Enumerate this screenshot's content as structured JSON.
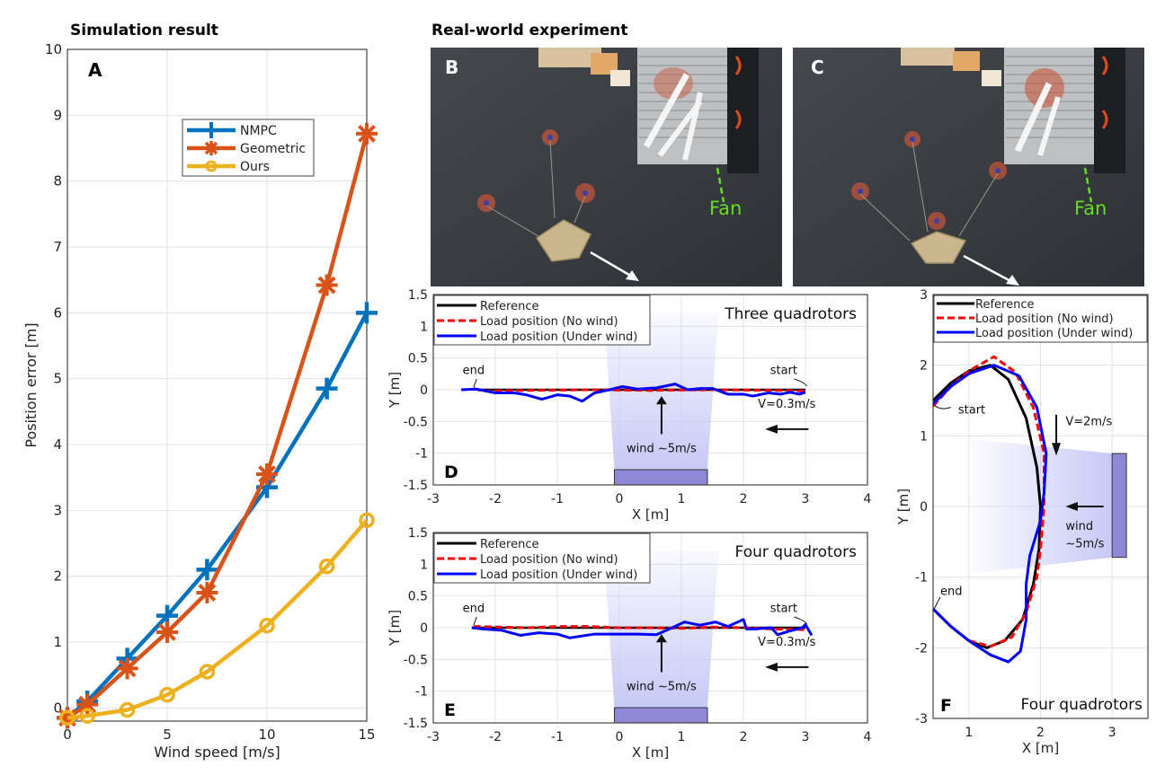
{
  "titles": {
    "simulation": "Simulation result",
    "real_world": "Real-world experiment"
  },
  "photos": [
    {
      "panel": "B",
      "fan_label": "Fan",
      "description": "three quadrotors carrying a suspended box load near a fan"
    },
    {
      "panel": "C",
      "fan_label": "Fan",
      "description": "four quadrotors carrying a suspended box load near a fan"
    }
  ],
  "colors": {
    "nmpc": "#0072BD",
    "geometric": "#D95319",
    "ours": "#EDB120",
    "reference": "#000000",
    "no_wind": "#FF0000",
    "under_wind": "#0000FF",
    "fan_label": "#66DD22",
    "fan_box": "#8F88D6",
    "wind_zone": "#C7C9F6"
  },
  "chart_data": [
    {
      "panel": "A",
      "type": "line",
      "title": "",
      "xlabel": "Wind speed [m/s]",
      "ylabel": "Position error [m]",
      "xlim": [
        0,
        15
      ],
      "ylim": [
        -0.2,
        10
      ],
      "xticks": [
        0,
        5,
        10,
        15
      ],
      "yticks": [
        0,
        1,
        2,
        3,
        4,
        5,
        6,
        7,
        8,
        9,
        10
      ],
      "grid": true,
      "legend_position": "upper-center",
      "series": [
        {
          "name": "NMPC",
          "marker": "plus",
          "x": [
            0,
            1,
            3,
            5,
            7,
            10,
            13,
            15
          ],
          "y": [
            -0.15,
            0.1,
            0.75,
            1.4,
            2.1,
            3.35,
            4.85,
            6.0
          ]
        },
        {
          "name": "Geometric",
          "marker": "asterisk",
          "x": [
            0,
            1,
            3,
            5,
            7,
            10,
            13,
            15
          ],
          "y": [
            -0.15,
            0.05,
            0.6,
            1.15,
            1.75,
            3.55,
            6.42,
            8.72
          ]
        },
        {
          "name": "Ours",
          "marker": "circle",
          "x": [
            0,
            1,
            3,
            5,
            7,
            10,
            13,
            15
          ],
          "y": [
            -0.15,
            -0.12,
            -0.03,
            0.2,
            0.55,
            1.25,
            2.15,
            2.85
          ]
        }
      ]
    },
    {
      "panel": "D",
      "type": "line",
      "subtitle": "Three quadrotors",
      "xlabel": "X [m]",
      "ylabel": "Y [m]",
      "xlim": [
        -3,
        4
      ],
      "ylim": [
        -1.5,
        1.5
      ],
      "xticks": [
        -3,
        -2,
        -1,
        0,
        1,
        2,
        3,
        4
      ],
      "yticks": [
        -1.5,
        -1,
        -0.5,
        0,
        0.5,
        1,
        1.5
      ],
      "grid": true,
      "legend_position": "top-left",
      "annotations": {
        "end": "end",
        "start": "start",
        "velocity": "V=0.3m/s",
        "wind": "wind ~5m/s"
      },
      "fan": {
        "x": [
          -0.08,
          1.42
        ],
        "y": [
          -1.5,
          -1.26
        ]
      },
      "series": [
        {
          "name": "Reference",
          "style": "solid",
          "x": [
            -2.3,
            3.0
          ],
          "y": [
            0,
            0
          ]
        },
        {
          "name": "Load position (No wind)",
          "style": "dashed",
          "x": [
            -2.35,
            -2.2,
            -1.5,
            -0.5,
            0.5,
            1.5,
            2.5,
            3.0
          ],
          "y": [
            0.02,
            -0.02,
            -0.01,
            0.0,
            -0.01,
            0.0,
            -0.01,
            -0.02
          ]
        },
        {
          "name": "Load position (Under wind)",
          "style": "solid",
          "x": [
            -2.55,
            -2.3,
            -2.0,
            -1.7,
            -1.5,
            -1.25,
            -1.0,
            -0.8,
            -0.6,
            -0.4,
            -0.2,
            0.05,
            0.3,
            0.6,
            0.9,
            1.1,
            1.3,
            1.5,
            1.75,
            2.0,
            2.15,
            2.4,
            2.6,
            2.75,
            2.9,
            3.0
          ],
          "y": [
            0.0,
            0.01,
            -0.05,
            -0.05,
            -0.08,
            -0.15,
            -0.08,
            -0.1,
            -0.18,
            -0.05,
            -0.01,
            0.05,
            0.01,
            0.03,
            0.09,
            0.0,
            0.02,
            0.02,
            -0.07,
            -0.07,
            -0.1,
            -0.05,
            -0.07,
            -0.04,
            -0.07,
            -0.04
          ]
        }
      ]
    },
    {
      "panel": "E",
      "type": "line",
      "subtitle": "Four quadrotors",
      "xlabel": "X [m]",
      "ylabel": "Y [m]",
      "xlim": [
        -3,
        4
      ],
      "ylim": [
        -1.5,
        1.5
      ],
      "xticks": [
        -3,
        -2,
        -1,
        0,
        1,
        2,
        3,
        4
      ],
      "yticks": [
        -1.5,
        -1,
        -0.5,
        0,
        0.5,
        1,
        1.5
      ],
      "grid": true,
      "legend_position": "top-left",
      "annotations": {
        "end": "end",
        "start": "start",
        "velocity": "V=0.3m/s",
        "wind": "wind ~5m/s"
      },
      "fan": {
        "x": [
          -0.08,
          1.42
        ],
        "y": [
          -1.5,
          -1.26
        ]
      },
      "series": [
        {
          "name": "Reference",
          "style": "solid",
          "x": [
            -2.35,
            3.0
          ],
          "y": [
            0,
            0
          ]
        },
        {
          "name": "Load position (No wind)",
          "style": "dashed",
          "x": [
            -2.35,
            -1.5,
            -1.0,
            -0.5,
            0.0,
            0.5,
            1.0,
            1.5,
            2.0,
            2.5,
            3.0
          ],
          "y": [
            0.02,
            0.0,
            0.02,
            0.02,
            0.0,
            0.0,
            -0.01,
            0.01,
            0.0,
            -0.02,
            -0.03
          ]
        },
        {
          "name": "Load position (Under wind)",
          "style": "solid",
          "x": [
            -2.38,
            -2.2,
            -1.9,
            -1.6,
            -1.3,
            -1.0,
            -0.8,
            -0.4,
            0.0,
            0.3,
            0.6,
            0.85,
            1.05,
            1.3,
            1.55,
            1.75,
            2.0,
            2.05,
            2.2,
            2.45,
            2.55,
            2.75,
            2.95,
            3.0,
            3.1
          ],
          "y": [
            0.0,
            -0.02,
            -0.04,
            -0.12,
            -0.08,
            -0.1,
            -0.16,
            -0.1,
            -0.1,
            -0.1,
            -0.11,
            0.0,
            0.09,
            0.04,
            0.09,
            0.02,
            0.13,
            -0.02,
            -0.02,
            0.0,
            -0.11,
            -0.05,
            0.0,
            0.05,
            -0.12
          ]
        }
      ]
    },
    {
      "panel": "F",
      "type": "line",
      "subtitle": "Four quadrotors",
      "xlabel": "X [m]",
      "ylabel": "Y [m]",
      "xlim": [
        0.5,
        3.5
      ],
      "ylim": [
        -3,
        3
      ],
      "xticks": [
        1,
        2,
        3
      ],
      "yticks": [
        -3,
        -2,
        -1,
        0,
        1,
        2,
        3
      ],
      "grid": true,
      "legend_position": "top",
      "annotations": {
        "end": "end",
        "start": "start",
        "velocity": "V=2m/s",
        "wind": "wind",
        "wind_speed": "~5m/s"
      },
      "fan": {
        "x": [
          3.0,
          3.2
        ],
        "y": [
          -0.72,
          0.75
        ]
      },
      "series": [
        {
          "name": "Reference",
          "style": "solid",
          "x": [
            0.5,
            0.75,
            1.0,
            1.3,
            1.55,
            1.8,
            1.95,
            2.0,
            1.98,
            1.9,
            1.75,
            1.5,
            1.25,
            1.0,
            0.75,
            0.5
          ],
          "y": [
            1.5,
            1.75,
            1.92,
            2.0,
            1.8,
            1.25,
            0.55,
            0.0,
            -0.6,
            -1.1,
            -1.6,
            -1.9,
            -2.0,
            -1.9,
            -1.7,
            -1.45
          ]
        },
        {
          "name": "Load position (No wind)",
          "style": "dashed",
          "x": [
            0.5,
            0.75,
            1.0,
            1.35,
            1.65,
            1.9,
            2.05,
            2.05,
            2.0,
            1.95,
            1.8,
            1.6,
            1.3,
            1.0,
            0.75,
            0.5
          ],
          "y": [
            1.42,
            1.7,
            1.92,
            2.12,
            1.9,
            1.4,
            0.75,
            0.0,
            -0.6,
            -1.0,
            -1.5,
            -1.85,
            -1.98,
            -1.9,
            -1.7,
            -1.45
          ]
        },
        {
          "name": "Load position (Under wind)",
          "style": "solid",
          "x": [
            0.5,
            0.75,
            1.0,
            1.35,
            1.7,
            1.95,
            2.08,
            2.05,
            2.0,
            1.85,
            1.8,
            1.8,
            1.72,
            1.55,
            1.3,
            1.0,
            0.75,
            0.5
          ],
          "y": [
            1.45,
            1.7,
            1.88,
            2.0,
            1.85,
            1.4,
            0.75,
            0.2,
            -0.2,
            -0.7,
            -1.1,
            -1.6,
            -2.05,
            -2.2,
            -2.1,
            -1.9,
            -1.7,
            -1.45
          ]
        }
      ]
    }
  ]
}
